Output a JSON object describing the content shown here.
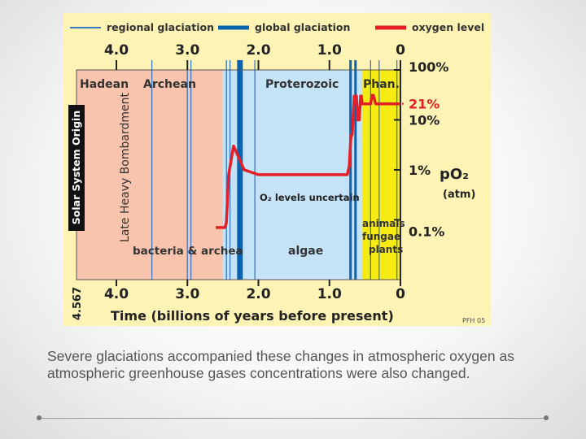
{
  "chart_data": {
    "type": "line",
    "title": "",
    "xlabel": "Time (billions of years before present)",
    "ylabel": "pO₂ (atm)",
    "x_axis": {
      "ticks": [
        4.0,
        3.0,
        2.0,
        1.0,
        0
      ],
      "tick_labels": [
        "4.0",
        "3.0",
        "2.0",
        "1.0",
        "0"
      ],
      "start_label": "4.567",
      "xlim": [
        4.567,
        0
      ],
      "reversed": true
    },
    "y_axis": {
      "scale": "log",
      "ylim": [
        0.0006,
        1.0
      ],
      "tick_labels": [
        "100%",
        "10%",
        "1%",
        "0.1%"
      ],
      "tick_values": [
        1.0,
        0.1,
        0.01,
        0.001
      ],
      "highlight_label": "21%",
      "highlight_value": 0.21
    },
    "legend": {
      "placement": "top",
      "items": [
        {
          "label": "regional glaciation",
          "color": "#3a78c2",
          "style": "thin-line"
        },
        {
          "label": "global glaciation",
          "color": "#0a63b0",
          "style": "thick-line"
        },
        {
          "label": "oxygen level",
          "color": "#e41f26",
          "style": "thick-line"
        }
      ]
    },
    "eons": [
      {
        "name": "Hadean",
        "start": 4.567,
        "end": 4.0,
        "color": "#f9c4ae"
      },
      {
        "name": "Archean",
        "start": 4.0,
        "end": 2.5,
        "color": "#f9c4ae"
      },
      {
        "name": "Proterozoic",
        "start": 2.5,
        "end": 0.541,
        "color": "#c5e3f6"
      },
      {
        "name": "Phan.",
        "start": 0.541,
        "end": 0,
        "color": "#f6ec14"
      }
    ],
    "regional_glaciations": [
      3.5,
      3.0,
      2.95,
      2.45,
      2.4,
      2.05,
      0.7,
      0.42,
      0.3,
      0.05
    ],
    "global_glaciations": [
      {
        "start": 2.3,
        "end": 2.22
      },
      {
        "start": 0.72,
        "end": 0.7
      },
      {
        "start": 0.65,
        "end": 0.63
      }
    ],
    "series": [
      {
        "name": "oxygen level",
        "color": "#e41f26",
        "x": [
          2.6,
          2.47,
          2.45,
          2.42,
          2.35,
          2.2,
          2.0,
          1.5,
          1.0,
          0.8,
          0.75,
          0.74,
          0.72,
          0.7,
          0.69,
          0.68,
          0.65,
          0.62,
          0.6,
          0.58,
          0.56,
          0.55,
          0.54,
          0.5,
          0.42,
          0.4,
          0.38,
          0.35,
          0.3,
          0.25,
          0.2,
          0.1,
          0.0
        ],
        "y": [
          0.0007,
          0.0007,
          0.0009,
          0.008,
          0.03,
          0.01,
          0.008,
          0.008,
          0.008,
          0.008,
          0.008,
          0.009,
          0.012,
          0.04,
          0.05,
          0.05,
          0.3,
          0.3,
          0.1,
          0.1,
          0.3,
          0.3,
          0.21,
          0.21,
          0.21,
          0.31,
          0.31,
          0.21,
          0.21,
          0.21,
          0.21,
          0.21,
          0.21
        ]
      }
    ],
    "annotations": [
      {
        "text": "Solar System Origin",
        "x": 4.567,
        "orientation": "vertical"
      },
      {
        "text": "Late Heavy Bombardment",
        "x": 3.9,
        "orientation": "vertical"
      },
      {
        "text": "bacteria & archea",
        "x_center": 3.15,
        "y": 0.0016
      },
      {
        "text": "algae",
        "x_center": 1.45,
        "y": 0.0016
      },
      {
        "text": "O₂ levels uncertain",
        "x_center": 1.35,
        "y": 0.012
      },
      {
        "text": "animals",
        "x_center": 0.28,
        "y": 0.006
      },
      {
        "text": "fungae",
        "x_center": 0.28,
        "y": 0.0037
      },
      {
        "text": "plants",
        "x_center": 0.23,
        "y": 0.0023
      },
      {
        "text": "PFH 05",
        "corner": "bottom-right"
      }
    ]
  },
  "caption": "Severe glaciations accompanied these changes in atmospheric oxygen as atmospheric greenhouse gases concentrations were also changed."
}
